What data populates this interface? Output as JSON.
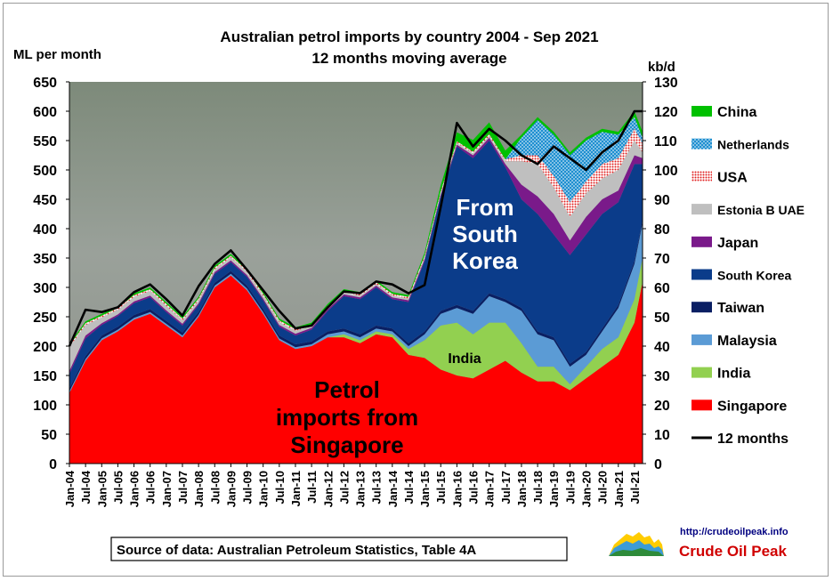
{
  "chart_data": {
    "type": "area",
    "title": "Australian petrol imports by country 2004 - Sep 2021",
    "subtitle": "12 months moving average",
    "ylabel_left": "ML per month",
    "ylabel_right": "kb/d",
    "ylim_left": [
      0,
      650
    ],
    "ylim_right": [
      0,
      130
    ],
    "y_ticks_left": [
      0,
      50,
      100,
      150,
      200,
      250,
      300,
      350,
      400,
      450,
      500,
      550,
      600,
      650
    ],
    "y_ticks_right": [
      0,
      10,
      20,
      30,
      40,
      50,
      60,
      70,
      80,
      90,
      100,
      110,
      120,
      130
    ],
    "x_ticks": [
      "Jan-04",
      "Jul-04",
      "Jan-05",
      "Jul-05",
      "Jan-06",
      "Jul-06",
      "Jan-07",
      "Jul-07",
      "Jan-08",
      "Jul-08",
      "Jan-09",
      "Jul-09",
      "Jan-10",
      "Jul-10",
      "Jan-11",
      "Jul-11",
      "Jan-12",
      "Jul-12",
      "Jan-13",
      "Jul-13",
      "Jan-14",
      "Jul-14",
      "Jan-15",
      "Jul-15",
      "Jan-16",
      "Jul-16",
      "Jan-17",
      "Jul-17",
      "Jan-18",
      "Jul-18",
      "Jan-19",
      "Jul-19",
      "Jan-20",
      "Jul-20",
      "Jan-21",
      "Jul-21"
    ],
    "sample_times": [
      2004.0,
      2004.5,
      2005.0,
      2005.5,
      2006.0,
      2006.5,
      2007.0,
      2007.5,
      2008.0,
      2008.5,
      2009.0,
      2009.5,
      2010.0,
      2010.5,
      2011.0,
      2011.5,
      2012.0,
      2012.5,
      2013.0,
      2013.5,
      2014.0,
      2014.5,
      2015.0,
      2015.5,
      2016.0,
      2016.5,
      2017.0,
      2017.5,
      2018.0,
      2018.5,
      2019.0,
      2019.5,
      2020.0,
      2020.5,
      2021.0,
      2021.5,
      2021.75
    ],
    "series": [
      {
        "name": "Singapore",
        "color": "#ff0000",
        "values": [
          120,
          175,
          210,
          225,
          245,
          255,
          235,
          215,
          250,
          300,
          320,
          295,
          255,
          210,
          195,
          200,
          215,
          215,
          205,
          220,
          215,
          185,
          180,
          160,
          150,
          145,
          160,
          175,
          155,
          140,
          140,
          125,
          145,
          165,
          185,
          240,
          310
        ]
      },
      {
        "name": "India",
        "color": "#92d050",
        "values": [
          0,
          0,
          0,
          0,
          0,
          0,
          0,
          0,
          0,
          0,
          0,
          0,
          0,
          0,
          0,
          0,
          0,
          5,
          5,
          5,
          5,
          10,
          30,
          75,
          90,
          75,
          80,
          65,
          50,
          25,
          25,
          10,
          20,
          30,
          30,
          40,
          40
        ]
      },
      {
        "name": "Malaysia",
        "color": "#5b9bd5",
        "values": [
          3,
          3,
          3,
          3,
          3,
          3,
          3,
          3,
          3,
          3,
          3,
          3,
          3,
          3,
          3,
          3,
          5,
          5,
          5,
          5,
          5,
          5,
          10,
          20,
          25,
          35,
          45,
          35,
          55,
          55,
          45,
          30,
          20,
          30,
          50,
          60,
          60
        ]
      },
      {
        "name": "Taiwan",
        "color": "#0a1f63",
        "values": [
          5,
          5,
          5,
          5,
          5,
          5,
          5,
          5,
          5,
          5,
          5,
          5,
          5,
          5,
          5,
          5,
          5,
          5,
          5,
          5,
          5,
          5,
          5,
          5,
          5,
          5,
          5,
          5,
          5,
          5,
          5,
          5,
          5,
          5,
          5,
          5,
          5
        ]
      },
      {
        "name": "South Korea",
        "color": "#0b3c8a",
        "values": [
          25,
          30,
          18,
          18,
          20,
          20,
          15,
          12,
          12,
          15,
          15,
          15,
          15,
          15,
          15,
          20,
          35,
          55,
          60,
          65,
          50,
          70,
          120,
          195,
          270,
          260,
          260,
          225,
          185,
          200,
          175,
          185,
          200,
          195,
          175,
          165,
          95
        ]
      },
      {
        "name": "Japan",
        "color": "#7a1a8a",
        "values": [
          5,
          5,
          3,
          3,
          3,
          3,
          3,
          3,
          3,
          3,
          3,
          3,
          3,
          3,
          3,
          3,
          3,
          3,
          3,
          3,
          3,
          3,
          3,
          3,
          3,
          5,
          5,
          5,
          25,
          30,
          35,
          25,
          30,
          25,
          20,
          15,
          10
        ]
      },
      {
        "name": "Estonia B UAE",
        "color": "#bfbfbf",
        "values": [
          40,
          18,
          10,
          8,
          8,
          8,
          8,
          6,
          5,
          5,
          5,
          5,
          5,
          5,
          5,
          3,
          3,
          3,
          3,
          3,
          3,
          3,
          3,
          3,
          3,
          3,
          3,
          5,
          40,
          55,
          45,
          40,
          40,
          35,
          35,
          25,
          10
        ]
      },
      {
        "name": "USA",
        "color": "#e02020",
        "values": [
          3,
          3,
          3,
          3,
          3,
          3,
          3,
          3,
          3,
          3,
          3,
          3,
          3,
          3,
          3,
          3,
          3,
          3,
          3,
          3,
          3,
          3,
          3,
          3,
          3,
          3,
          3,
          3,
          10,
          15,
          20,
          25,
          20,
          25,
          20,
          20,
          15
        ]
      },
      {
        "name": "Netherlands",
        "color": "#1e8fd0",
        "values": [
          0,
          0,
          0,
          0,
          0,
          0,
          0,
          0,
          0,
          0,
          0,
          0,
          0,
          0,
          0,
          0,
          0,
          0,
          0,
          0,
          0,
          0,
          0,
          0,
          0,
          0,
          0,
          0,
          30,
          60,
          70,
          80,
          70,
          55,
          40,
          20,
          10
        ]
      },
      {
        "name": "China",
        "color": "#00c000",
        "values": [
          3,
          3,
          3,
          3,
          3,
          3,
          3,
          3,
          3,
          3,
          3,
          3,
          3,
          3,
          3,
          3,
          3,
          3,
          3,
          3,
          3,
          3,
          5,
          10,
          15,
          20,
          20,
          15,
          5,
          5,
          5,
          5,
          5,
          5,
          5,
          10,
          10
        ]
      }
    ],
    "line": {
      "name": "12 months",
      "color": "#000000",
      "values": [
        200,
        262,
        258,
        266,
        292,
        305,
        280,
        252,
        302,
        340,
        363,
        330,
        295,
        260,
        230,
        235,
        266,
        293,
        290,
        310,
        305,
        290,
        304,
        437,
        580,
        540,
        570,
        550,
        525,
        510,
        540,
        520,
        500,
        530,
        550,
        600,
        600
      ]
    },
    "legend": [
      "China",
      "Netherlands",
      "USA",
      "Estonia B UAE",
      "Japan",
      "South Korea",
      "Taiwan",
      "Malaysia",
      "India",
      "Singapore",
      "12 months"
    ],
    "legend_position": "right",
    "annotations": {
      "korea": [
        "From",
        "South",
        "Korea"
      ],
      "india": "India",
      "singapore": [
        "Petrol",
        "imports from",
        "Singapore"
      ]
    },
    "grid": false
  },
  "source_note": "Source of data: Australian Petroleum Statistics, Table 4A",
  "branding": {
    "url": "http://crudeoilpeak.info",
    "name": "Crude Oil Peak"
  }
}
